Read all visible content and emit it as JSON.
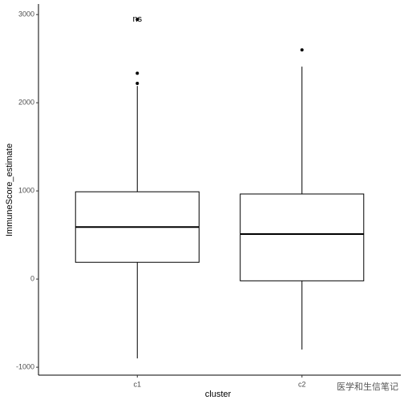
{
  "chart_data": {
    "type": "box",
    "x_label": "cluster",
    "y_label": "ImmuneScore_estimate",
    "categories": [
      "c1",
      "c2"
    ],
    "boxes": [
      {
        "min": -900,
        "q1": 190,
        "median": 590,
        "q3": 990,
        "max": 2190,
        "outliers": [
          2220,
          2335,
          2945
        ]
      },
      {
        "min": -800,
        "q1": -20,
        "median": 510,
        "q3": 965,
        "max": 2410,
        "outliers": [
          2600
        ]
      }
    ],
    "annotation": "ns",
    "ylim": [
      -1090,
      3120
    ],
    "yticks": [
      -1000,
      0,
      1000,
      2000,
      3000
    ],
    "color": "#000000",
    "grid": false
  },
  "watermark": "医学和生信笔记"
}
